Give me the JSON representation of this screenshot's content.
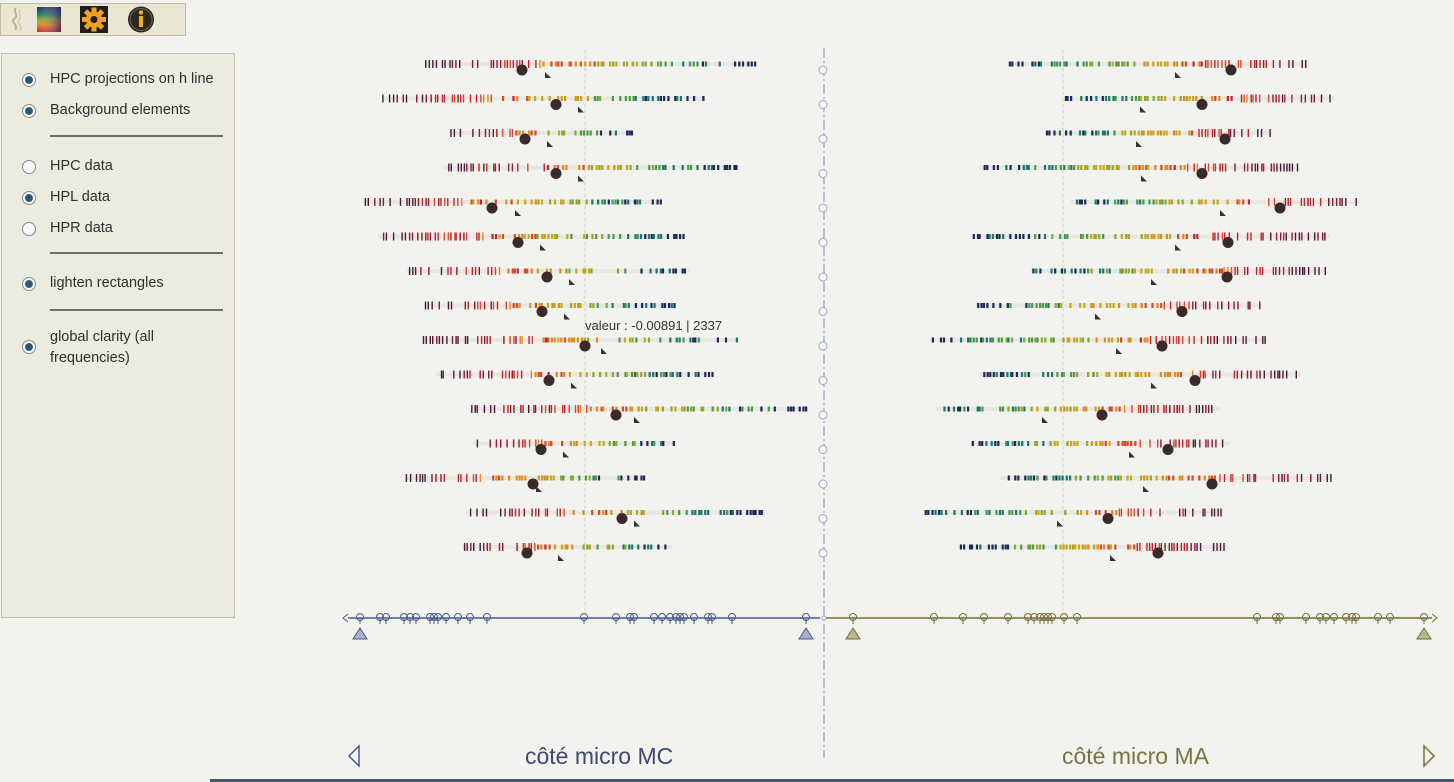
{
  "toolbar": {
    "buttons": [
      {
        "name": "colormap-icon"
      },
      {
        "name": "gear-icon"
      },
      {
        "name": "info-icon"
      }
    ]
  },
  "options": {
    "hpc_projections": {
      "label": "HPC projections on h line",
      "checked": true
    },
    "background_elements": {
      "label": "Background elements",
      "checked": true
    },
    "hpc_data": {
      "label": "HPC data",
      "checked": false
    },
    "hpl_data": {
      "label": "HPL data",
      "checked": true
    },
    "hpr_data": {
      "label": "HPR data",
      "checked": false
    },
    "lighten_rectangles": {
      "label": "lighten rectangles",
      "checked": true
    },
    "global_clarity": {
      "label": "global clarity (all frequencies)",
      "checked": true
    }
  },
  "tooltip": {
    "text": "valeur : -0.00891 | 2337"
  },
  "sides": {
    "left": {
      "label": "côté micro MC",
      "color": "#3d4b70"
    },
    "right": {
      "label": "côté micro MA",
      "color": "#7a7444"
    }
  },
  "colors": {
    "left_axis": "#4a5a8c",
    "right_axis": "#77703a",
    "dot": "#3b2a2a",
    "dashed_line": "#d8cfa0",
    "gradient": [
      "#4e1a3a",
      "#8e1a2e",
      "#c8202a",
      "#d9482a",
      "#e08a1a",
      "#c8a81a",
      "#8fa82a",
      "#4a9a4a",
      "#1a7a6a",
      "#1a2a5a"
    ]
  }
}
